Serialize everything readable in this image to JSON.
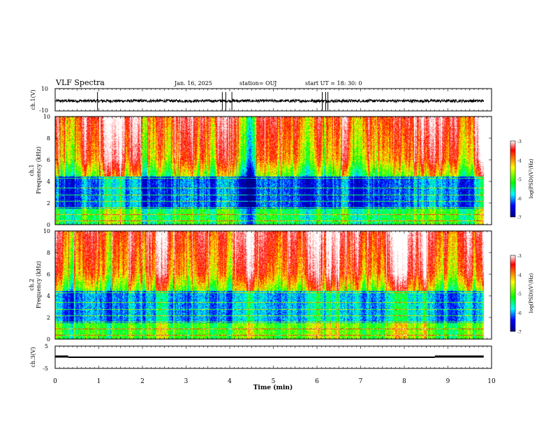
{
  "header": {
    "title": "VLF Spectra",
    "date": "Jan. 16, 2025",
    "station": "station= OUJ",
    "start": "start  UT =   18: 30: 0"
  },
  "chart_data": [
    {
      "type": "line",
      "name": "waveform-ch1",
      "ylabel": "ch.1(V)",
      "ytick_labels": [
        "10",
        "-10"
      ],
      "ylim": [
        -10,
        10
      ],
      "xlim": [
        0,
        10
      ],
      "baseline": -1,
      "notable_spikes_min": [
        0.97,
        3.83,
        3.91,
        4.05,
        6.12,
        6.2,
        6.25
      ]
    },
    {
      "type": "heatmap",
      "name": "spectrogram-ch1",
      "ylabel": "ch.1 Frequency (kHz)",
      "ylim": [
        0,
        10
      ],
      "yticks": [
        0,
        2,
        4,
        6,
        8,
        10
      ],
      "xlim": [
        0,
        10
      ],
      "data_end_min": 9.82,
      "colorbar": {
        "label": "log(PSD)(V²/Hz)",
        "range": [
          -7,
          -3
        ],
        "ticks": [
          "-3",
          "-4",
          "-5",
          "-6",
          "-7"
        ],
        "colors": [
          "#000088",
          "#0000ff",
          "#00ffff",
          "#00ff00",
          "#ffff00",
          "#ff0000",
          "#ffffff"
        ]
      },
      "quiet_intervals_min": [
        [
          2.0,
          2.3
        ],
        [
          4.15,
          4.6
        ],
        [
          6.15,
          6.2
        ]
      ],
      "band_lines_khz": [
        0.4,
        1.0,
        1.6,
        2.2,
        2.8,
        3.4,
        4.3
      ]
    },
    {
      "type": "heatmap",
      "name": "spectrogram-ch2",
      "ylabel": "ch.2 Frequency (kHz)",
      "ylim": [
        0,
        10
      ],
      "yticks": [
        0,
        2,
        4,
        6,
        8,
        10
      ],
      "xlim": [
        0,
        10
      ],
      "data_end_min": 9.82,
      "colorbar": {
        "label": "log(PSD)(V²/Hz)",
        "range": [
          -7,
          -3
        ],
        "ticks": [
          "-3",
          "-4",
          "-5",
          "-6",
          "-7"
        ],
        "colors": [
          "#000088",
          "#0000ff",
          "#00ffff",
          "#00ff00",
          "#ffff00",
          "#ff0000",
          "#ffffff"
        ]
      },
      "quiet_intervals_min": [
        [
          2.0,
          2.3
        ],
        [
          6.15,
          6.2
        ],
        [
          8.5,
          8.9
        ]
      ],
      "band_lines_khz": [
        0.4,
        1.0,
        1.6,
        2.2,
        2.8,
        3.4,
        4.3
      ]
    },
    {
      "type": "line",
      "name": "waveform-ch3",
      "ylabel": "ch.3(V)",
      "ytick_labels": [
        "5",
        "-5"
      ],
      "ylim": [
        -5,
        5
      ],
      "xlim": [
        0,
        10
      ],
      "xlabel": "Time (min)",
      "xtick_labels": [
        "0",
        "1",
        "2",
        "3",
        "4",
        "5",
        "6",
        "7",
        "8",
        "9",
        "10"
      ],
      "segments": [
        {
          "x": [
            0.0,
            0.3
          ],
          "y": 0.3
        },
        {
          "x": [
            0.3,
            8.7
          ],
          "y": 0.0
        },
        {
          "x": [
            8.7,
            9.82
          ],
          "y": 0.3
        }
      ]
    }
  ]
}
